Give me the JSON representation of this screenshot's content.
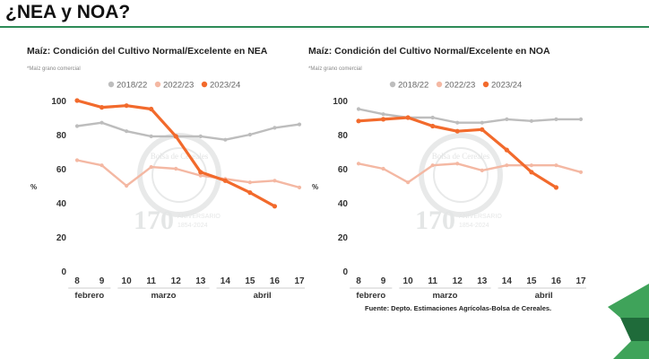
{
  "slide": {
    "title": "¿NEA y NOA?",
    "source": "Fuente: Depto. Estimaciones Agrícolas-Bolsa de Cereales."
  },
  "watermark": {
    "main": "170",
    "sub1": "ANIVERSARIO",
    "sub2": "1854-2024",
    "ring": "Bolsa de Cereales"
  },
  "colors": {
    "accent_green": "#2e8b57",
    "dark_green": "#1f6b3a",
    "light_green": "#3fa35a"
  },
  "chart_data": [
    {
      "type": "line",
      "title": "Maíz: Condición del Cultivo Normal/Excelente en NEA",
      "subtitle": "*Maíz grano comercial",
      "ylabel": "%",
      "ylim": [
        0,
        100
      ],
      "yticks": [
        0,
        20,
        40,
        60,
        80,
        100
      ],
      "x": [
        "8",
        "9",
        "10",
        "11",
        "12",
        "13",
        "14",
        "15",
        "16",
        "17"
      ],
      "month_labels": [
        {
          "label": "febrero",
          "from": 0,
          "to": 1
        },
        {
          "label": "marzo",
          "from": 2,
          "to": 5
        },
        {
          "label": "abril",
          "from": 6,
          "to": 9
        }
      ],
      "legend_position": "top",
      "series": [
        {
          "name": "2018/22",
          "color": "#bdbdbd",
          "values": [
            85,
            87,
            82,
            79,
            79,
            79,
            77,
            80,
            84,
            86
          ]
        },
        {
          "name": "2022/23",
          "color": "#f4b8a3",
          "values": [
            65,
            62,
            50,
            61,
            60,
            56,
            54,
            52,
            53,
            49
          ]
        },
        {
          "name": "2023/24",
          "color": "#f26a2c",
          "values": [
            100,
            96,
            97,
            95,
            79,
            58,
            53,
            46,
            38,
            null
          ]
        }
      ]
    },
    {
      "type": "line",
      "title": "Maíz: Condición del Cultivo Normal/Excelente en NOA",
      "subtitle": "*Maíz grano comercial",
      "ylabel": "%",
      "ylim": [
        0,
        100
      ],
      "yticks": [
        0,
        20,
        40,
        60,
        80,
        100
      ],
      "x": [
        "8",
        "9",
        "10",
        "11",
        "12",
        "13",
        "14",
        "15",
        "16",
        "17"
      ],
      "month_labels": [
        {
          "label": "febrero",
          "from": 0,
          "to": 1
        },
        {
          "label": "marzo",
          "from": 2,
          "to": 5
        },
        {
          "label": "abril",
          "from": 6,
          "to": 9
        }
      ],
      "legend_position": "top",
      "series": [
        {
          "name": "2018/22",
          "color": "#bdbdbd",
          "values": [
            95,
            92,
            90,
            90,
            87,
            87,
            89,
            88,
            89,
            89
          ]
        },
        {
          "name": "2022/23",
          "color": "#f4b8a3",
          "values": [
            63,
            60,
            52,
            62,
            63,
            59,
            62,
            62,
            62,
            58
          ]
        },
        {
          "name": "2023/24",
          "color": "#f26a2c",
          "values": [
            88,
            89,
            90,
            85,
            82,
            83,
            71,
            58,
            49,
            null
          ]
        }
      ]
    }
  ]
}
